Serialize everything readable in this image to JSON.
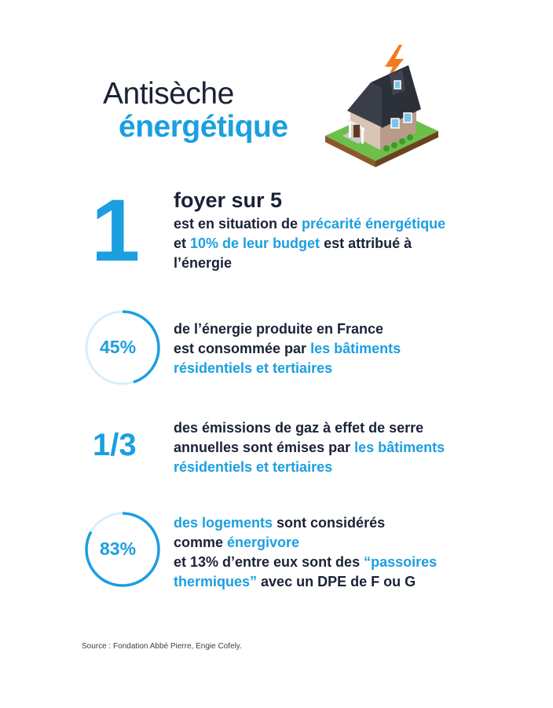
{
  "title": {
    "line1": "Antisèche",
    "line2": "énergétique"
  },
  "stat1": {
    "big": "1",
    "headline": "foyer sur 5",
    "l1_a": "est en situation de ",
    "l1_b": "précarité énergétique",
    "l2_a": "et ",
    "l2_b": "10% de leur budget",
    "l2_c": " est attribué à",
    "l3": "l’énergie"
  },
  "stat2": {
    "value": "45%",
    "percent": 45,
    "l1": "de l’énergie produite en France",
    "l2_a": "est consommée par ",
    "l2_b": "les bâtiments",
    "l3": "résidentiels et tertiaires"
  },
  "stat3": {
    "value": "1/3",
    "l1": "des émissions de gaz à effet de serre",
    "l2_a": "annuelles sont émises par ",
    "l2_b": "les bâtiments",
    "l3": "résidentiels et tertiaires"
  },
  "stat4": {
    "value": "83%",
    "percent": 83,
    "l1_a": "des logements",
    "l1_b": " sont considérés",
    "l2_a": "comme ",
    "l2_b": "énergivore",
    "l3_a": "et 13% d’entre eux sont des ",
    "l3_b": "“passoires",
    "l4_a": "thermiques”",
    "l4_b": " avec un DPE de F ou G"
  },
  "source": "Source : Fondation Abbé Pierre, Engie Cofely.",
  "colors": {
    "accent": "#1b9fe0",
    "text": "#1b2236",
    "ring_track": "#d9eefa"
  },
  "icons": {
    "illustration": "house-with-lightning-illustration"
  }
}
